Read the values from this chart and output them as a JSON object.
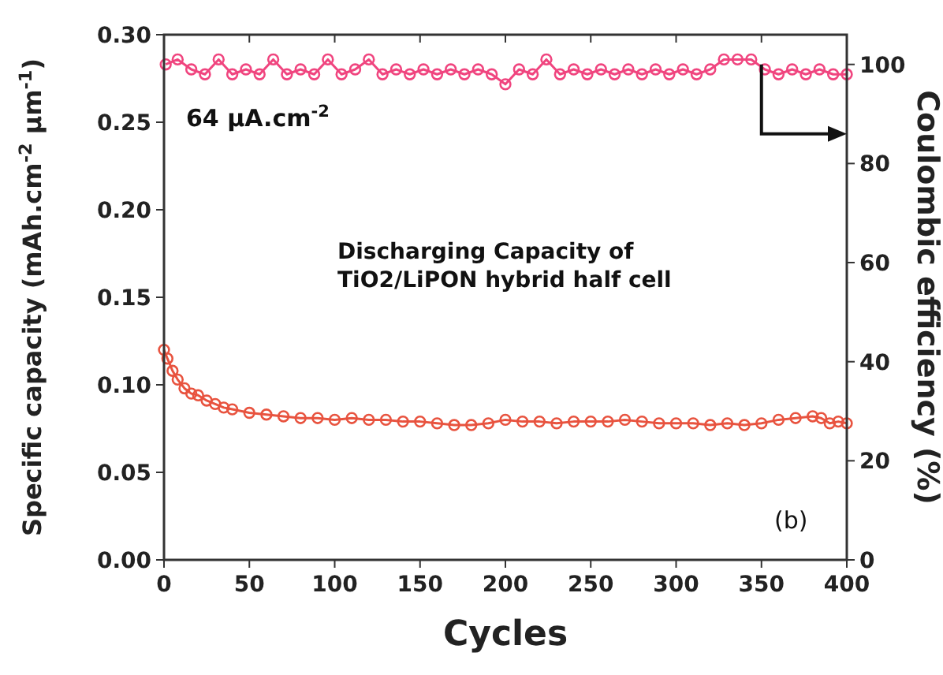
{
  "chart_data": {
    "type": "line",
    "xlabel": "Cycles",
    "ylabel": "Specific capacity (mAh.cm$^{-2}$ μm$^{-1}$)",
    "y2label": "Coulombic efficiency (%)",
    "xlim": [
      0,
      400
    ],
    "xticks": [
      0,
      50,
      100,
      150,
      200,
      250,
      300,
      350,
      400
    ],
    "ylim": [
      0,
      0.3
    ],
    "yticks": [
      {
        "value": 0,
        "label": "0.00"
      },
      {
        "value": 0.05,
        "label": "0.05"
      },
      {
        "value": 0.1,
        "label": "0.10"
      },
      {
        "value": 0.15,
        "label": "0.15"
      },
      {
        "value": 0.2,
        "label": "0.20"
      },
      {
        "value": 0.25,
        "label": "0.25"
      },
      {
        "value": 0.3,
        "label": "0.30"
      }
    ],
    "y2lim": [
      0,
      106
    ],
    "y2ticks": [
      0,
      20,
      40,
      60,
      80,
      100
    ],
    "marker": "circle",
    "annotations": [
      "64 μA.cm$^{-2}$",
      "Discharging Capacity of\nTiO2/LiPON hybrid half cell",
      "(b)"
    ],
    "series": [
      {
        "color": "#e8533f",
        "x": [
          0,
          2,
          5,
          8,
          12,
          16,
          20,
          25,
          30,
          35,
          40,
          50,
          60,
          70,
          80,
          90,
          100,
          110,
          120,
          130,
          140,
          150,
          160,
          170,
          180,
          190,
          200,
          210,
          220,
          230,
          240,
          250,
          260,
          270,
          280,
          290,
          300,
          310,
          320,
          330,
          340,
          350,
          360,
          370,
          380,
          385,
          390,
          395,
          400
        ],
        "values": [
          0.12,
          0.115,
          0.108,
          0.103,
          0.098,
          0.095,
          0.094,
          0.091,
          0.089,
          0.087,
          0.086,
          0.084,
          0.083,
          0.082,
          0.081,
          0.081,
          0.08,
          0.081,
          0.08,
          0.08,
          0.079,
          0.079,
          0.078,
          0.077,
          0.077,
          0.078,
          0.08,
          0.079,
          0.079,
          0.078,
          0.079,
          0.079,
          0.079,
          0.08,
          0.079,
          0.078,
          0.078,
          0.078,
          0.077,
          0.078,
          0.077,
          0.078,
          0.08,
          0.081,
          0.082,
          0.081,
          0.078,
          0.079,
          0.078
        ]
      },
      {
        "color": "#f0457f",
        "axis": "y2",
        "x": [
          1,
          8,
          16,
          24,
          32,
          40,
          48,
          56,
          64,
          72,
          80,
          88,
          96,
          104,
          112,
          120,
          128,
          136,
          144,
          152,
          160,
          168,
          176,
          184,
          192,
          200,
          208,
          216,
          224,
          232,
          240,
          248,
          256,
          264,
          272,
          280,
          288,
          296,
          304,
          312,
          320,
          328,
          336,
          344,
          352,
          360,
          368,
          376,
          384,
          392,
          400
        ],
        "values": [
          100,
          101,
          99,
          98,
          101,
          98,
          99,
          98,
          101,
          98,
          99,
          98,
          101,
          98,
          99,
          101,
          98,
          99,
          98,
          99,
          98,
          99,
          98,
          99,
          98,
          96,
          99,
          98,
          101,
          98,
          99,
          98,
          99,
          98,
          99,
          98,
          99,
          98,
          99,
          98,
          99,
          101,
          101,
          101,
          99,
          98,
          99,
          98,
          99,
          98,
          98
        ]
      }
    ]
  }
}
